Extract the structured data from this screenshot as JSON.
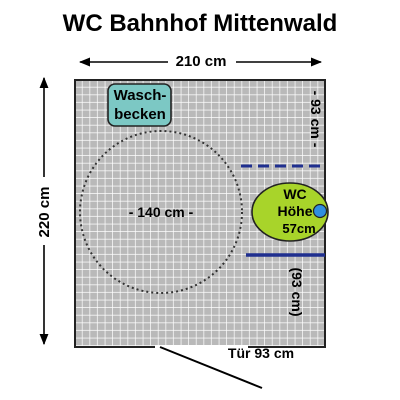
{
  "title": "WC Bahnhof Mittenwald",
  "dimensions": {
    "width": "210 cm",
    "height": "220 cm"
  },
  "features": {
    "sink": {
      "line1": "Wasch-",
      "line2": "becken"
    },
    "turning_circle": "- 140 cm -",
    "toilet": {
      "line1": "WC",
      "line2": "Höhe",
      "line3": "57cm"
    },
    "distance_top": "- 93 cm -",
    "distance_bottom": "(93 cm)",
    "door": "Tür 93 cm"
  },
  "colors": {
    "floor": "#b9b9b9",
    "grid": "#ffffff",
    "sink": "#7cc8c4",
    "toilet": "#a8d42a",
    "toilet_seat": "#2f8fe0",
    "grab_bar": "#1f2f8f"
  }
}
